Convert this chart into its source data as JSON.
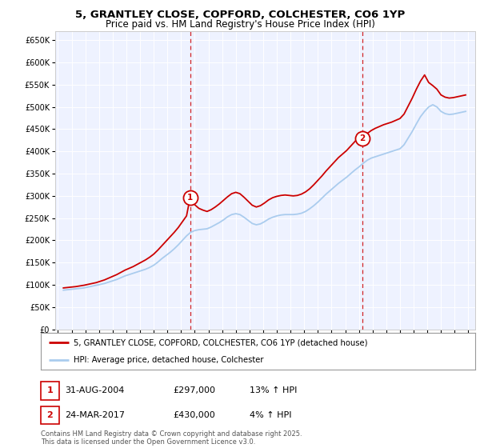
{
  "title_line1": "5, GRANTLEY CLOSE, COPFORD, COLCHESTER, CO6 1YP",
  "title_line2": "Price paid vs. HM Land Registry's House Price Index (HPI)",
  "ylim": [
    0,
    670000
  ],
  "yticks": [
    0,
    50000,
    100000,
    150000,
    200000,
    250000,
    300000,
    350000,
    400000,
    450000,
    500000,
    550000,
    600000,
    650000
  ],
  "xlim_start": 1994.8,
  "xlim_end": 2025.5,
  "sale1_x": 2004.667,
  "sale1_y": 297000,
  "sale1_label": "1",
  "sale2_x": 2017.23,
  "sale2_y": 430000,
  "sale2_label": "2",
  "legend_house": "5, GRANTLEY CLOSE, COPFORD, COLCHESTER, CO6 1YP (detached house)",
  "legend_hpi": "HPI: Average price, detached house, Colchester",
  "annotation1_num": "1",
  "annotation1_date": "31-AUG-2004",
  "annotation1_price": "£297,000",
  "annotation1_hpi": "13% ↑ HPI",
  "annotation2_num": "2",
  "annotation2_date": "24-MAR-2017",
  "annotation2_price": "£430,000",
  "annotation2_hpi": "4% ↑ HPI",
  "footer": "Contains HM Land Registry data © Crown copyright and database right 2025.\nThis data is licensed under the Open Government Licence v3.0.",
  "color_house": "#cc0000",
  "color_hpi": "#aaccee",
  "color_vline": "#cc0000",
  "color_marker": "#cc0000",
  "background_plot": "#eef2ff",
  "background_fig": "#ffffff",
  "hpi_years": [
    1995.4,
    1995.7,
    1996.0,
    1996.3,
    1996.6,
    1996.9,
    1997.2,
    1997.5,
    1997.8,
    1998.1,
    1998.4,
    1998.7,
    1999.0,
    1999.3,
    1999.6,
    1999.9,
    2000.2,
    2000.5,
    2000.8,
    2001.1,
    2001.4,
    2001.7,
    2002.0,
    2002.3,
    2002.6,
    2002.9,
    2003.2,
    2003.5,
    2003.8,
    2004.1,
    2004.4,
    2004.7,
    2005.0,
    2005.3,
    2005.6,
    2005.9,
    2006.2,
    2006.5,
    2006.8,
    2007.1,
    2007.4,
    2007.7,
    2008.0,
    2008.3,
    2008.6,
    2008.9,
    2009.2,
    2009.5,
    2009.8,
    2010.1,
    2010.4,
    2010.7,
    2011.0,
    2011.3,
    2011.6,
    2011.9,
    2012.2,
    2012.5,
    2012.8,
    2013.1,
    2013.4,
    2013.7,
    2014.0,
    2014.3,
    2014.6,
    2014.9,
    2015.2,
    2015.5,
    2015.8,
    2016.1,
    2016.4,
    2016.7,
    2017.0,
    2017.3,
    2017.6,
    2017.9,
    2018.2,
    2018.5,
    2018.8,
    2019.1,
    2019.4,
    2019.7,
    2020.0,
    2020.3,
    2020.6,
    2020.9,
    2021.2,
    2021.5,
    2021.8,
    2022.1,
    2022.4,
    2022.7,
    2023.0,
    2023.3,
    2023.6,
    2023.9,
    2024.2,
    2024.5,
    2024.8
  ],
  "hpi_values": [
    88000,
    89000,
    90000,
    91000,
    92000,
    93000,
    95000,
    97000,
    99000,
    101000,
    103000,
    106000,
    109000,
    112000,
    116000,
    120000,
    123000,
    126000,
    129000,
    132000,
    135000,
    139000,
    144000,
    151000,
    159000,
    166000,
    173000,
    181000,
    190000,
    200000,
    210000,
    218000,
    222000,
    224000,
    225000,
    226000,
    230000,
    235000,
    240000,
    246000,
    253000,
    258000,
    260000,
    258000,
    252000,
    245000,
    238000,
    235000,
    237000,
    242000,
    248000,
    252000,
    255000,
    257000,
    258000,
    258000,
    258000,
    259000,
    261000,
    265000,
    271000,
    278000,
    286000,
    295000,
    304000,
    312000,
    320000,
    328000,
    335000,
    342000,
    350000,
    358000,
    365000,
    373000,
    380000,
    385000,
    388000,
    391000,
    394000,
    397000,
    400000,
    403000,
    406000,
    415000,
    430000,
    445000,
    462000,
    478000,
    490000,
    500000,
    505000,
    500000,
    490000,
    485000,
    483000,
    484000,
    486000,
    488000,
    490000
  ],
  "house_years": [
    1995.4,
    1995.7,
    1996.0,
    1996.3,
    1996.6,
    1996.9,
    1997.2,
    1997.5,
    1997.8,
    1998.1,
    1998.4,
    1998.7,
    1999.0,
    1999.3,
    1999.6,
    1999.9,
    2000.2,
    2000.5,
    2000.8,
    2001.1,
    2001.4,
    2001.7,
    2002.0,
    2002.3,
    2002.6,
    2002.9,
    2003.2,
    2003.5,
    2003.8,
    2004.1,
    2004.4,
    2004.667,
    2005.0,
    2005.3,
    2005.6,
    2005.9,
    2006.2,
    2006.5,
    2006.8,
    2007.1,
    2007.4,
    2007.7,
    2008.0,
    2008.3,
    2008.6,
    2008.9,
    2009.2,
    2009.5,
    2009.8,
    2010.1,
    2010.4,
    2010.7,
    2011.0,
    2011.3,
    2011.6,
    2011.9,
    2012.2,
    2012.5,
    2012.8,
    2013.1,
    2013.4,
    2013.7,
    2014.0,
    2014.3,
    2014.6,
    2014.9,
    2015.2,
    2015.5,
    2015.8,
    2016.1,
    2016.4,
    2016.7,
    2017.0,
    2017.23,
    2017.6,
    2017.9,
    2018.2,
    2018.5,
    2018.8,
    2019.1,
    2019.4,
    2019.7,
    2020.0,
    2020.3,
    2020.6,
    2020.9,
    2021.2,
    2021.5,
    2021.8,
    2022.1,
    2022.4,
    2022.7,
    2023.0,
    2023.3,
    2023.6,
    2023.9,
    2024.2,
    2024.5,
    2024.8
  ],
  "house_values": [
    93000,
    94000,
    95000,
    96000,
    97500,
    99000,
    101000,
    103000,
    105000,
    108000,
    111000,
    115000,
    119000,
    123000,
    128000,
    133000,
    137000,
    141000,
    146000,
    151000,
    156000,
    162000,
    169000,
    178000,
    188000,
    198000,
    208000,
    218000,
    229000,
    242000,
    255000,
    297000,
    280000,
    272000,
    268000,
    265000,
    269000,
    275000,
    282000,
    290000,
    298000,
    305000,
    308000,
    305000,
    297000,
    288000,
    279000,
    275000,
    278000,
    284000,
    291000,
    296000,
    299000,
    301000,
    302000,
    301000,
    300000,
    301000,
    304000,
    309000,
    316000,
    325000,
    335000,
    345000,
    356000,
    366000,
    376000,
    386000,
    394000,
    402000,
    412000,
    422000,
    432000,
    430000,
    440000,
    447000,
    452000,
    456000,
    460000,
    463000,
    466000,
    470000,
    474000,
    484000,
    502000,
    520000,
    540000,
    558000,
    572000,
    555000,
    548000,
    540000,
    527000,
    522000,
    520000,
    521000,
    523000,
    525000,
    527000
  ]
}
